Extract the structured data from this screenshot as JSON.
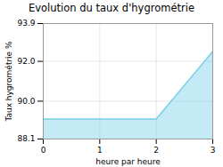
{
  "chart_data": {
    "type": "area",
    "title": "Evolution du taux d'hygrométrie",
    "xlabel": "heure par heure",
    "ylabel": "Taux hygrométrie %",
    "x": [
      0,
      2,
      3
    ],
    "values": [
      89.1,
      89.1,
      92.5
    ],
    "color": "#7dd0e8",
    "xlim": [
      0,
      3
    ],
    "ylim": [
      88.1,
      93.9
    ],
    "xticks": [
      0,
      1,
      2,
      3
    ],
    "yticks": [
      88.1,
      {
        "value": 90,
        "label": "90.0"
      },
      {
        "value": 92,
        "label": "92.0"
      },
      93.9
    ],
    "grid": true
  }
}
